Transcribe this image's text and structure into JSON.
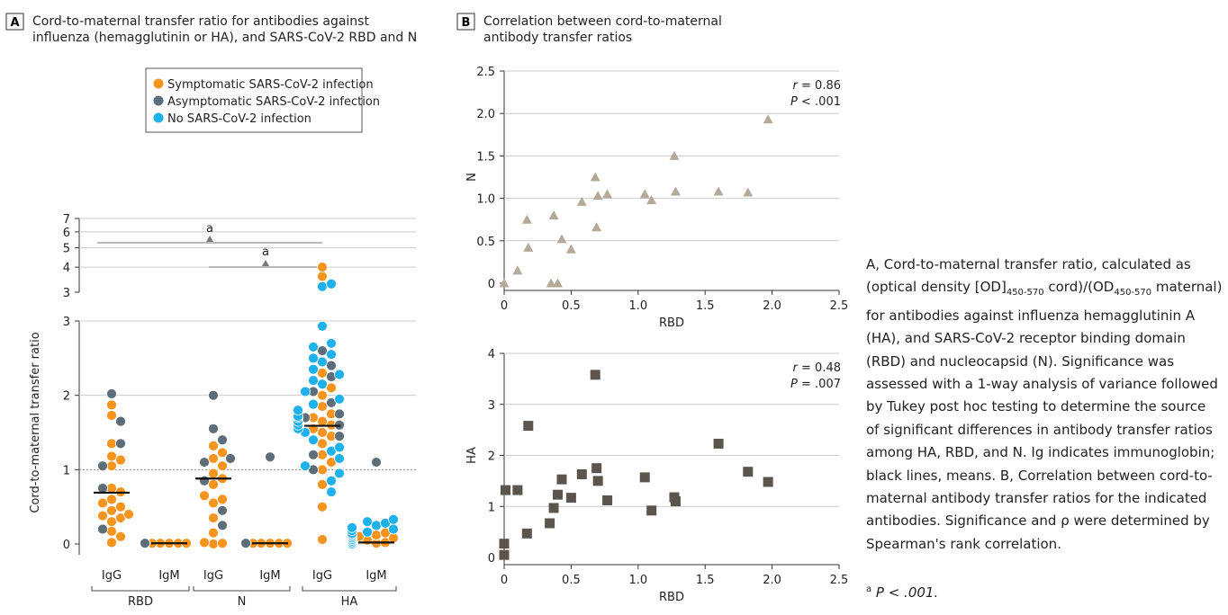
{
  "panel_a": {
    "letter": "A",
    "title_line1": "Cord-to-maternal transfer ratio for antibodies against",
    "title_line2": "influenza (hemagglutinin or HA), and SARS-CoV-2 RBD and N",
    "legend": [
      {
        "label": "Symptomatic SARS-CoV-2 infection",
        "color": "#F7941D"
      },
      {
        "label": "Asymptomatic SARS-CoV-2 infection",
        "color": "#5E6D7A"
      },
      {
        "label": "No SARS-CoV-2 infection",
        "color": "#1EB1EC"
      }
    ],
    "ylabel": "Cord-to-maternal transfer ratio",
    "y_ticks_lower": [
      "0",
      "1",
      "2",
      "3"
    ],
    "y_ticks_upper": [
      "3",
      "4",
      "5",
      "6",
      "7"
    ],
    "x_ticks": [
      "IgG",
      "IgM",
      "IgG",
      "IgM",
      "IgG",
      "IgM"
    ],
    "groups": [
      "RBD",
      "N",
      "HA"
    ],
    "sig_marker": "a"
  },
  "panel_b": {
    "letter": "B",
    "title_line1": "Correlation between cord-to-maternal",
    "title_line2": "antibody transfer ratios"
  },
  "chart_data": [
    {
      "type": "scatter",
      "panel": "A",
      "categories": [
        "RBD IgG",
        "RBD IgM",
        "N IgG",
        "N IgM",
        "HA IgG",
        "HA IgM"
      ],
      "ylabel": "Cord-to-maternal transfer ratio",
      "ylim": [
        0,
        7
      ],
      "y_axis_break": 3,
      "reference_line": 1,
      "means": [
        0.69,
        0.01,
        0.88,
        0.01,
        1.59,
        0.02
      ],
      "series": [
        {
          "name": "Symptomatic SARS-CoV-2 infection",
          "values": [
            [
              0.02,
              0.1,
              0.17,
              0.3,
              0.35,
              0.38,
              0.4,
              0.45,
              0.5,
              0.55,
              0.6,
              0.7,
              0.75,
              1.05,
              1.13,
              1.18,
              1.35,
              1.73,
              1.87
            ],
            [
              0.01,
              0.01,
              0.01,
              0.01,
              0.01
            ],
            [
              0.0,
              0.01,
              0.02,
              0.15,
              0.35,
              0.55,
              0.6,
              0.65,
              0.8,
              0.88,
              0.95,
              1.05,
              1.15,
              1.23,
              1.32
            ],
            [
              0.01,
              0.01,
              0.01,
              0.01,
              0.01,
              0.01
            ],
            [
              0.06,
              0.5,
              0.8,
              1.0,
              1.1,
              1.2,
              1.35,
              1.45,
              1.5,
              1.55,
              1.6,
              1.65,
              1.7,
              1.75,
              1.85,
              2.0,
              2.1,
              2.3,
              3.6,
              4.0
            ],
            [
              0.01,
              0.02,
              0.05,
              0.08,
              0.1,
              0.12,
              0.15
            ]
          ]
        },
        {
          "name": "Asymptomatic SARS-CoV-2 infection",
          "values": [
            [
              0.2,
              0.75,
              1.05,
              1.35,
              1.65,
              2.02
            ],
            [
              0.01,
              0.01
            ],
            [
              0.25,
              0.45,
              0.85,
              1.1,
              1.15,
              1.4,
              1.55,
              2.0
            ],
            [
              0.01,
              0.01,
              1.17
            ],
            [
              1.0,
              1.2,
              1.45,
              1.6,
              1.7,
              1.75,
              1.9,
              2.05,
              2.25,
              2.4,
              2.6
            ],
            [
              0.01,
              0.05,
              0.1,
              1.1
            ]
          ]
        },
        {
          "name": "No SARS-CoV-2 infection",
          "values": [
            [],
            [],
            [],
            [],
            [
              0.7,
              0.85,
              0.95,
              1.05,
              1.15,
              1.25,
              1.3,
              1.4,
              1.5,
              1.55,
              1.6,
              1.65,
              1.7,
              1.72,
              1.8,
              1.88,
              1.95,
              2.05,
              2.15,
              2.2,
              2.28,
              2.35,
              2.45,
              2.5,
              2.55,
              2.65,
              2.7,
              2.93,
              3.2,
              3.3
            ],
            [
              0.0,
              0.02,
              0.04,
              0.06,
              0.08,
              0.1,
              0.12,
              0.14,
              0.16,
              0.18,
              0.2,
              0.22,
              0.25,
              0.28,
              0.3,
              0.33
            ]
          ]
        }
      ]
    },
    {
      "type": "scatter",
      "panel": "B-top",
      "xlabel": "RBD",
      "ylabel": "N",
      "xlim": [
        0,
        2.5
      ],
      "ylim": [
        0,
        2.5
      ],
      "x_ticks": [
        0,
        0.5,
        1.0,
        1.5,
        2.0,
        2.5
      ],
      "y_ticks": [
        0,
        0.5,
        1.0,
        1.5,
        2.0,
        2.5
      ],
      "annotation": {
        "r_label": "r",
        "r_value": " = 0.86",
        "p_label": "P",
        "p_value": " < .001"
      },
      "color": "#B5A99A",
      "marker": "triangle",
      "points": [
        [
          0,
          0
        ],
        [
          0.1,
          0.15
        ],
        [
          0.17,
          0.75
        ],
        [
          0.18,
          0.42
        ],
        [
          0.35,
          0.0
        ],
        [
          0.37,
          0.8
        ],
        [
          0.4,
          0.0
        ],
        [
          0.43,
          0.52
        ],
        [
          0.5,
          0.4
        ],
        [
          0.58,
          0.96
        ],
        [
          0.68,
          1.25
        ],
        [
          0.69,
          0.66
        ],
        [
          0.7,
          1.03
        ],
        [
          0.77,
          1.05
        ],
        [
          1.05,
          1.05
        ],
        [
          1.1,
          0.98
        ],
        [
          1.27,
          1.5
        ],
        [
          1.28,
          1.08
        ],
        [
          1.6,
          1.08
        ],
        [
          1.82,
          1.07
        ],
        [
          1.97,
          1.93
        ]
      ]
    },
    {
      "type": "scatter",
      "panel": "B-bottom",
      "xlabel": "RBD",
      "ylabel": "HA",
      "xlim": [
        0,
        2.5
      ],
      "ylim": [
        0,
        4
      ],
      "x_ticks": [
        0,
        0.5,
        1.0,
        1.5,
        2.0,
        2.5
      ],
      "y_ticks": [
        0,
        1,
        2,
        3,
        4
      ],
      "annotation": {
        "r_label": "r",
        "r_value": " = 0.48",
        "p_label": "P",
        "p_value": " = .007"
      },
      "color": "#5C554D",
      "marker": "square",
      "points": [
        [
          0,
          0.05
        ],
        [
          0.0,
          0.27
        ],
        [
          0.01,
          1.32
        ],
        [
          0.1,
          1.32
        ],
        [
          0.17,
          0.47
        ],
        [
          0.18,
          2.58
        ],
        [
          0.34,
          0.67
        ],
        [
          0.37,
          0.97
        ],
        [
          0.4,
          1.23
        ],
        [
          0.43,
          1.53
        ],
        [
          0.5,
          1.17
        ],
        [
          0.58,
          1.63
        ],
        [
          0.68,
          3.58
        ],
        [
          0.69,
          1.75
        ],
        [
          0.7,
          1.5
        ],
        [
          0.77,
          1.12
        ],
        [
          1.05,
          1.57
        ],
        [
          1.1,
          0.92
        ],
        [
          1.27,
          1.18
        ],
        [
          1.28,
          1.1
        ],
        [
          1.6,
          2.23
        ],
        [
          1.82,
          1.68
        ],
        [
          1.97,
          1.48
        ]
      ]
    }
  ],
  "caption": {
    "p1": "A, Cord-to-maternal transfer ratio, calculated as (optical density [OD]",
    "sub1": "450-570",
    "p2": " cord)/(OD",
    "sub2": "450-570",
    "p3": " maternal) for antibodies against influenza hemagglutinin A (HA), and SARS-CoV-2 receptor binding domain (RBD) and nucleocapsid (N). Significance was assessed with a 1-way analysis of variance followed by Tukey post hoc testing to determine the source of significant differences in antibody transfer ratios among HA, RBD, and N. Ig indicates immunoglobin; black lines, means. B, Correlation between cord-to-maternal antibody transfer ratios for the indicated antibodies. Significance and ρ were determined by Spearman's rank correlation.",
    "footnote_mark": "a",
    "footnote_text": " P < .001."
  }
}
